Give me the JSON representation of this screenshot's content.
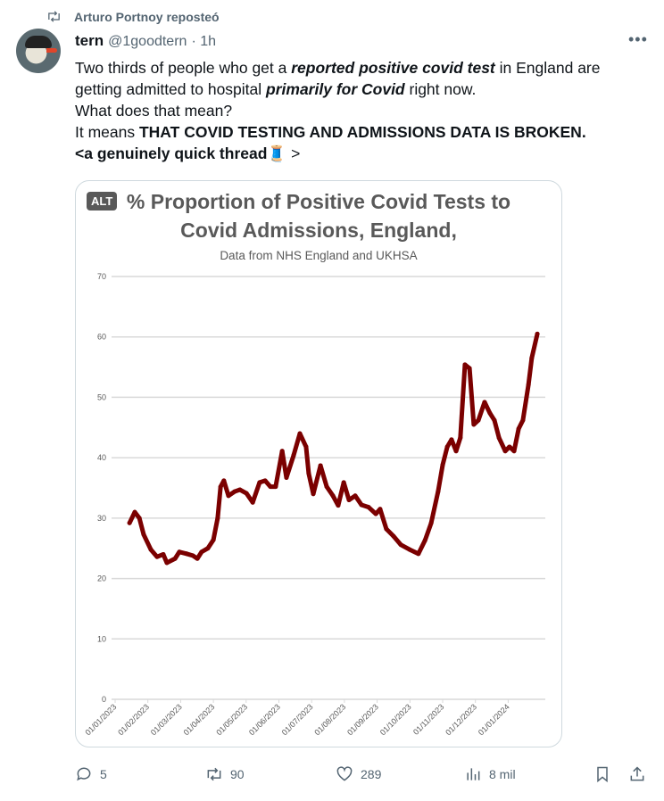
{
  "repost": {
    "label": "Arturo Portnoy reposteó"
  },
  "author": {
    "name": "tern",
    "handle": "@1goodtern",
    "time": "· 1h"
  },
  "tweet": {
    "p1a": "Two thirds of people who get a ",
    "p1b": "reported positive covid test",
    "p1c": " in England are getting admitted to hospital ",
    "p1d": "primarily for Covid",
    "p1e": " right now.",
    "p2": "What does that mean?",
    "p3a": "It means ",
    "p3b": "THAT COVID TESTING AND ADMISSIONS DATA IS BROKEN.",
    "p4a": "<a genuinely quick thread",
    "p4b": "🧵",
    "p4c": " >"
  },
  "media": {
    "alt_badge": "ALT"
  },
  "actions": {
    "replies": "5",
    "reposts": "90",
    "likes": "289",
    "views": "8 mil"
  },
  "colors": {
    "line": "#7b0000",
    "grid": "#d9d9d9"
  },
  "chart_data": {
    "type": "line",
    "title_line1": "% Proportion of Positive Covid Tests to",
    "title_line2": "Covid Admissions,  England,",
    "subtitle": "Data from NHS England and UKHSA",
    "xlabel": "",
    "ylabel": "",
    "ylim": [
      0,
      70
    ],
    "yticks": [
      0,
      10,
      20,
      30,
      40,
      50,
      60,
      70
    ],
    "xtick_labels": [
      "01/01/2023",
      "01/02/2023",
      "01/03/2023",
      "01/04/2023",
      "01/05/2023",
      "01/06/2023",
      "01/07/2023",
      "01/08/2023",
      "01/09/2023",
      "01/10/2023",
      "01/11/2023",
      "01/12/2023",
      "01/01/2024"
    ],
    "x_unit": "months since 01/01/2023",
    "grid": true,
    "series": [
      {
        "name": "% proportion",
        "x": [
          0.44,
          0.6,
          0.74,
          0.87,
          1.09,
          1.28,
          1.47,
          1.58,
          1.83,
          1.96,
          2.18,
          2.37,
          2.51,
          2.64,
          2.83,
          3.0,
          3.13,
          3.22,
          3.32,
          3.46,
          3.65,
          3.81,
          4.01,
          4.2,
          4.41,
          4.58,
          4.74,
          4.9,
          5.1,
          5.23,
          5.45,
          5.64,
          5.83,
          5.91,
          6.05,
          6.27,
          6.46,
          6.65,
          6.81,
          6.98,
          7.14,
          7.33,
          7.52,
          7.74,
          7.96,
          8.09,
          8.28,
          8.5,
          8.72,
          8.99,
          9.26,
          9.46,
          9.65,
          9.86,
          10.0,
          10.14,
          10.27,
          10.41,
          10.54,
          10.68,
          10.82,
          10.95,
          11.09,
          11.28,
          11.44,
          11.58,
          11.72,
          11.91,
          12.04,
          12.18,
          12.32,
          12.45,
          12.62,
          12.72,
          12.89
        ],
        "values": [
          29.2,
          31,
          30,
          27.3,
          24.8,
          23.6,
          24,
          22.6,
          23.3,
          24.4,
          24.1,
          23.8,
          23.3,
          24.4,
          25,
          26.4,
          30,
          35.2,
          36.2,
          33.7,
          34.4,
          34.7,
          34.1,
          32.6,
          35.9,
          36.2,
          35.2,
          35.2,
          41.1,
          36.7,
          40.4,
          44,
          41.8,
          37.4,
          34,
          38.7,
          35.2,
          33.7,
          32.1,
          35.9,
          33,
          33.7,
          32.2,
          31.8,
          30.7,
          31.5,
          28.2,
          27,
          25.6,
          24.8,
          24.1,
          26.3,
          29.2,
          34.4,
          38.8,
          41.8,
          43,
          41.1,
          43.3,
          55.4,
          54.8,
          45.5,
          46.2,
          49.2,
          47.4,
          46.2,
          43.3,
          41.1,
          41.8,
          41.1,
          44.8,
          46.2,
          52.1,
          56.5,
          60.5
        ]
      }
    ]
  }
}
